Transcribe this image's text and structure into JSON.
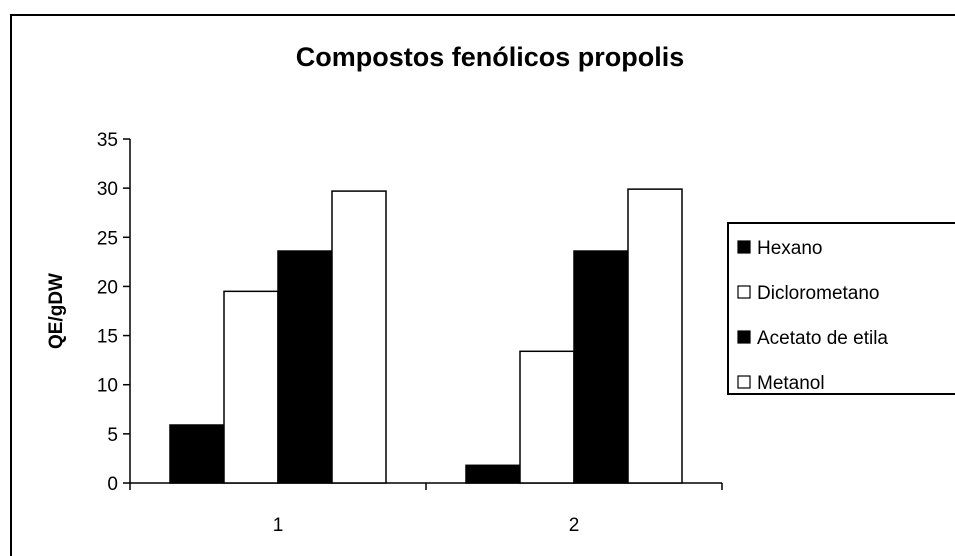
{
  "chart_data": {
    "type": "bar",
    "title": "Compostos fenólicos propolis",
    "xlabel": "",
    "ylabel": "QE/gDW",
    "categories": [
      "1",
      "2"
    ],
    "ylim": [
      0,
      35
    ],
    "yticks": [
      0,
      5,
      10,
      15,
      20,
      25,
      30,
      35
    ],
    "series": [
      {
        "name": "Hexano",
        "values": [
          5.9,
          1.8
        ],
        "color": "#000000"
      },
      {
        "name": "Diclorometano",
        "values": [
          19.5,
          13.4
        ],
        "color": "#ffffff"
      },
      {
        "name": "Acetato de etila",
        "values": [
          23.6,
          23.6
        ],
        "color": "#000000"
      },
      {
        "name": "Metanol",
        "values": [
          29.7,
          29.9
        ],
        "color": "#ffffff"
      }
    ],
    "grid": false,
    "legend_position": "right"
  }
}
